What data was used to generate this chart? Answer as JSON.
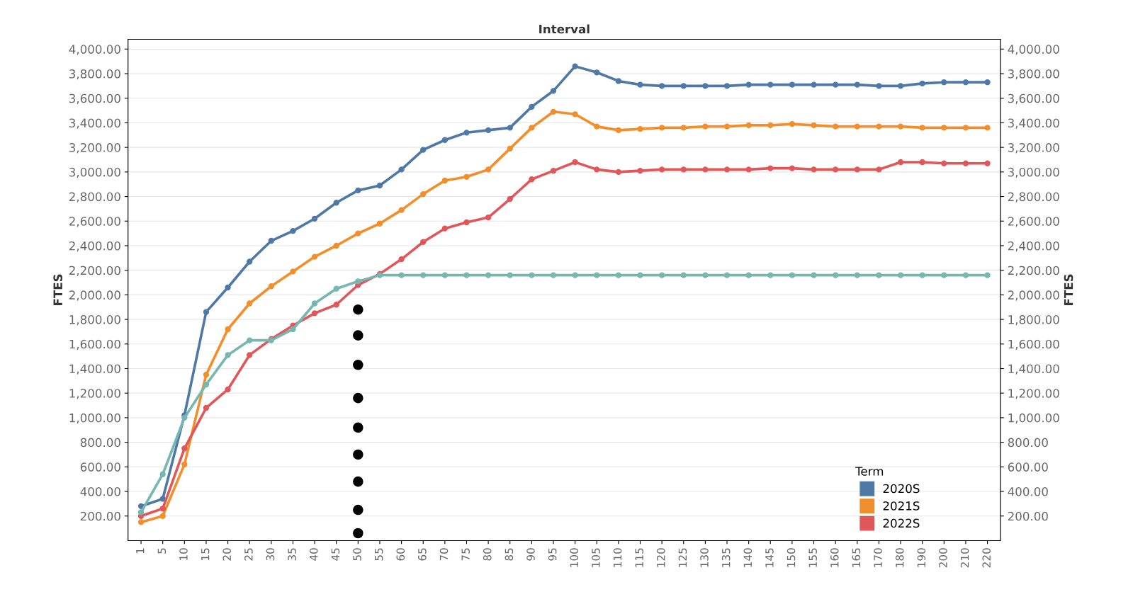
{
  "chart_data": {
    "type": "line",
    "title": "Interval",
    "ylabel": "FTES",
    "y2label": "FTES",
    "legend_title": "Term",
    "categories": [
      "1",
      "5",
      "10",
      "15",
      "20",
      "25",
      "30",
      "35",
      "40",
      "45",
      "50",
      "55",
      "60",
      "65",
      "70",
      "75",
      "80",
      "85",
      "90",
      "95",
      "100",
      "105",
      "110",
      "115",
      "120",
      "125",
      "130",
      "135",
      "140",
      "145",
      "150",
      "155",
      "160",
      "165",
      "170",
      "180",
      "190",
      "200",
      "210",
      "220"
    ],
    "series": [
      {
        "name": "2020S",
        "color": "#4e79a7",
        "values": [
          280,
          340,
          1020,
          1860,
          2060,
          2270,
          2440,
          2520,
          2620,
          2750,
          2850,
          2890,
          3020,
          3180,
          3260,
          3320,
          3340,
          3360,
          3530,
          3660,
          3860,
          3810,
          3740,
          3710,
          3700,
          3700,
          3700,
          3700,
          3710,
          3710,
          3710,
          3710,
          3710,
          3710,
          3700,
          3700,
          3720,
          3730,
          3730,
          3730
        ]
      },
      {
        "name": "2021S",
        "color": "#f28e2b",
        "values": [
          150,
          200,
          620,
          1350,
          1720,
          1930,
          2070,
          2190,
          2310,
          2400,
          2500,
          2580,
          2690,
          2820,
          2930,
          2960,
          3020,
          3190,
          3360,
          3490,
          3470,
          3370,
          3340,
          3350,
          3360,
          3360,
          3370,
          3370,
          3380,
          3380,
          3390,
          3380,
          3370,
          3370,
          3370,
          3370,
          3360,
          3360,
          3360,
          3360
        ]
      },
      {
        "name": "2022S",
        "color": "#e15759",
        "values": [
          200,
          260,
          750,
          1080,
          1230,
          1510,
          1640,
          1750,
          1850,
          1920,
          2080,
          2170,
          2290,
          2430,
          2540,
          2590,
          2630,
          2780,
          2940,
          3010,
          3080,
          3020,
          3000,
          3010,
          3020,
          3020,
          3020,
          3020,
          3020,
          3030,
          3030,
          3020,
          3020,
          3020,
          3020,
          3080,
          3080,
          3070,
          3070,
          3070
        ]
      },
      {
        "color": "#76b7b2",
        "values": [
          230,
          540,
          1000,
          1270,
          1510,
          1630,
          1630,
          1720,
          1930,
          2050,
          2110,
          2160,
          2160,
          2160,
          2160,
          2160,
          2160,
          2160,
          2160,
          2160,
          2160,
          2160,
          2160,
          2160,
          2160,
          2160,
          2160,
          2160,
          2160,
          2160,
          2160,
          2160,
          2160,
          2160,
          2160,
          2160,
          2160,
          2160,
          2160,
          2160
        ]
      },
      {
        "type": "scatter",
        "color": "#000000",
        "x": [
          "50",
          "50",
          "50",
          "50",
          "50",
          "50",
          "50",
          "50",
          "50"
        ],
        "values": [
          1880,
          1670,
          1430,
          1160,
          920,
          700,
          480,
          250,
          60
        ]
      }
    ],
    "ylim": [
      0,
      4080
    ],
    "y2lim": [
      0,
      4080
    ],
    "yticks": [
      {
        "value": 200,
        "label": "200.00"
      },
      {
        "value": 400,
        "label": "400.00"
      },
      {
        "value": 600,
        "label": "600.00"
      },
      {
        "value": 800,
        "label": "800.00"
      },
      {
        "value": 1000,
        "label": "1,000.00"
      },
      {
        "value": 1200,
        "label": "1,200.00"
      },
      {
        "value": 1400,
        "label": "1,400.00"
      },
      {
        "value": 1600,
        "label": "1,600.00"
      },
      {
        "value": 1800,
        "label": "1,800.00"
      },
      {
        "value": 2000,
        "label": "2,000.00"
      },
      {
        "value": 2200,
        "label": "2,200.00"
      },
      {
        "value": 2400,
        "label": "2,400.00"
      },
      {
        "value": 2600,
        "label": "2,600.00"
      },
      {
        "value": 2800,
        "label": "2,800.00"
      },
      {
        "value": 3000,
        "label": "3,000.00"
      },
      {
        "value": 3200,
        "label": "3,200.00"
      },
      {
        "value": 3400,
        "label": "3,400.00"
      },
      {
        "value": 3600,
        "label": "3,600.00"
      },
      {
        "value": 3800,
        "label": "3,800.00"
      },
      {
        "value": 4000,
        "label": "4,000.00"
      }
    ],
    "y2ticks": [
      {
        "value": 200,
        "label": "200.00"
      },
      {
        "value": 400,
        "label": "400.00"
      },
      {
        "value": 600,
        "label": "600.00"
      },
      {
        "value": 800,
        "label": "800.00"
      },
      {
        "value": 1000,
        "label": "1,000.00"
      },
      {
        "value": 1200,
        "label": "1,200.00"
      },
      {
        "value": 1400,
        "label": "1,400.00"
      },
      {
        "value": 1600,
        "label": "1,600.00"
      },
      {
        "value": 1800,
        "label": "1,800.00"
      },
      {
        "value": 2000,
        "label": "2,000.00"
      },
      {
        "value": 2200,
        "label": "2,200.00"
      },
      {
        "value": 2400,
        "label": "2,400.00"
      },
      {
        "value": 2600,
        "label": "2,600.00"
      },
      {
        "value": 2800,
        "label": "2,800.00"
      },
      {
        "value": 3000,
        "label": "3,000.00"
      },
      {
        "value": 3200,
        "label": "3,200.00"
      },
      {
        "value": 3400,
        "label": "3,400.00"
      },
      {
        "value": 3600,
        "label": "3,600.00"
      },
      {
        "value": 3800,
        "label": "3,800.00"
      },
      {
        "value": 4000,
        "label": "4,000.00"
      }
    ],
    "grid": "y",
    "legend": "bottom right",
    "marker": "circle",
    "line_style": "solid"
  }
}
